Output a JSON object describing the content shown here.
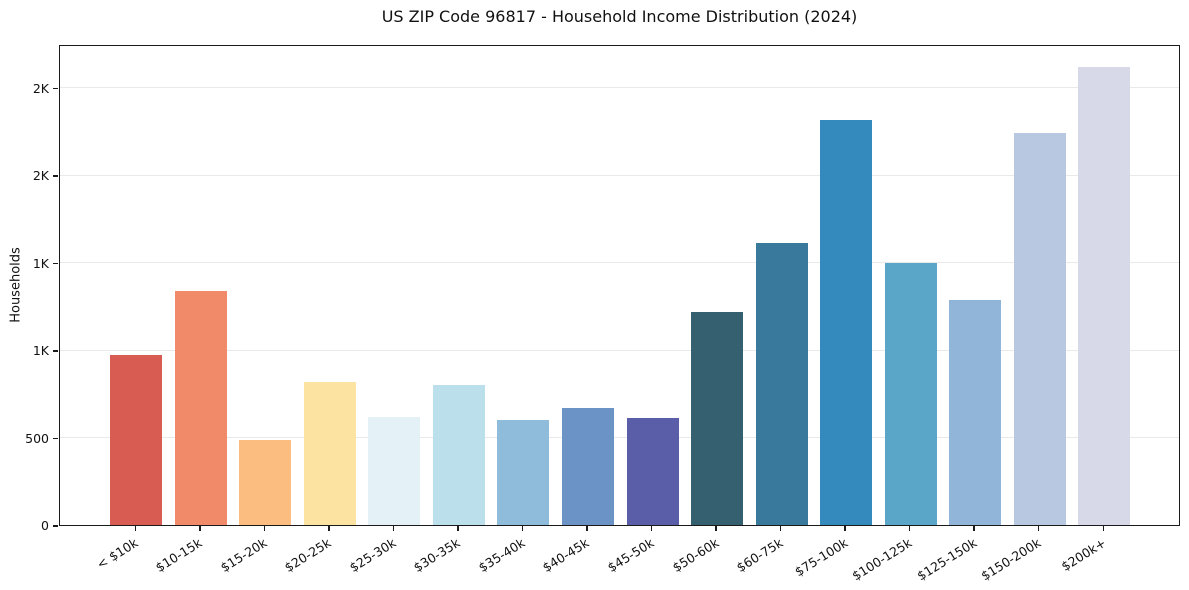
{
  "title": "US ZIP Code 96817 - Household Income Distribution (2024)",
  "chart_data": {
    "type": "bar",
    "title": "US ZIP Code 96817 - Household Income Distribution (2024)",
    "xlabel": "",
    "ylabel": "Households",
    "categories": [
      "< $10k",
      "$10-15k",
      "$15-20k",
      "$20-25k",
      "$25-30k",
      "$30-35k",
      "$35-40k",
      "$40-45k",
      "$45-50k",
      "$50-60k",
      "$60-75k",
      "$75-100k",
      "$100-125k",
      "$125-150k",
      "$150-200k",
      "$200k+"
    ],
    "values": [
      972,
      1340,
      485,
      816,
      620,
      802,
      602,
      668,
      610,
      1216,
      1612,
      2317,
      1496,
      1285,
      2239,
      2618
    ],
    "bar_colors": [
      "#d85c51",
      "#f18a68",
      "#fbbd80",
      "#fde3a2",
      "#e4f2f7",
      "#bcdfec",
      "#90bcdc",
      "#6c93c5",
      "#5a5ea8",
      "#35606f",
      "#38799c",
      "#348abd",
      "#5aa6c9",
      "#90b5d8",
      "#b9c8e1",
      "#d7d9e8"
    ],
    "ylim": [
      0,
      2750
    ],
    "y_ticks": [
      {
        "value": 0,
        "label": "0"
      },
      {
        "value": 500,
        "label": "500"
      },
      {
        "value": 1000,
        "label": "1K"
      },
      {
        "value": 1500,
        "label": "1K"
      },
      {
        "value": 2000,
        "label": "2K"
      },
      {
        "value": 2500,
        "label": "2K"
      }
    ],
    "grid": "horizontal",
    "gridline_color": "#e9e9e9",
    "axis_color": "#1a1a1a",
    "background": "#ffffff",
    "legend": "none"
  }
}
